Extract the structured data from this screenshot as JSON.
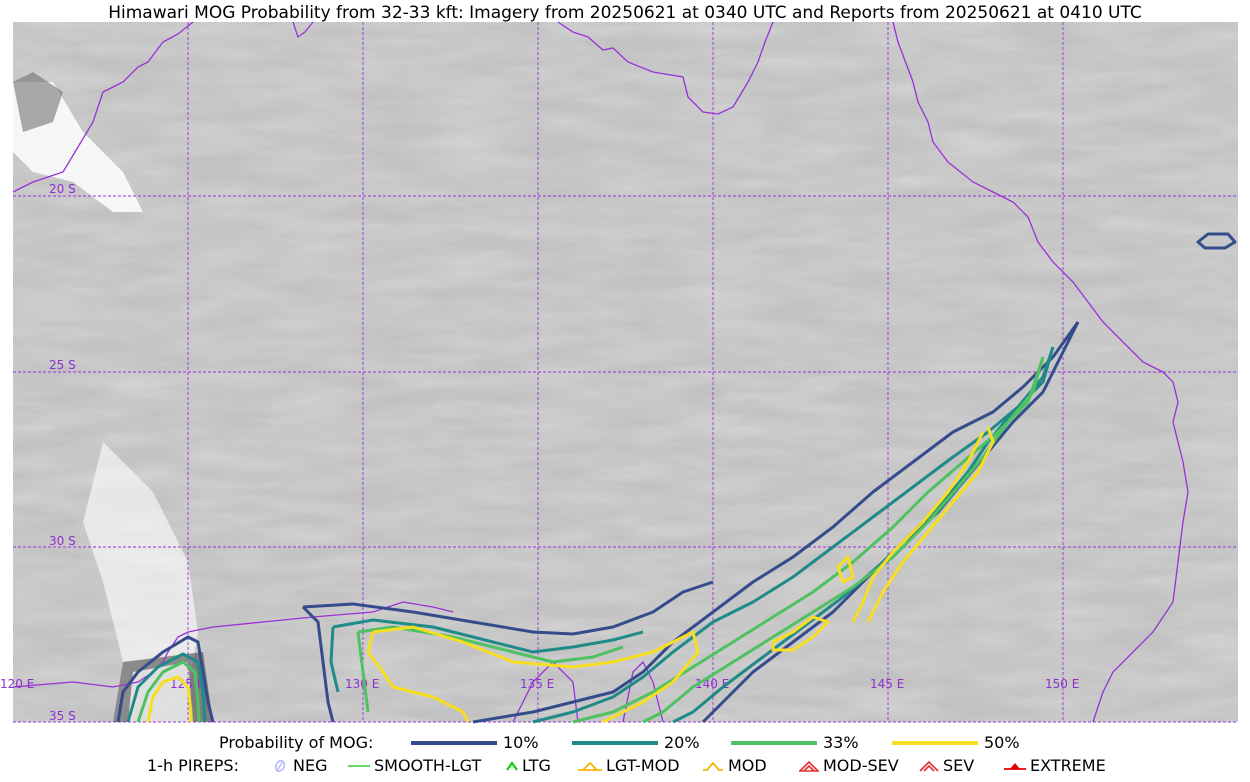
{
  "title": "Himawari MOG Probability from 32-33 kft: Imagery from 20250621 at 0340 UTC and Reports from 20250621 at 0410 UTC",
  "map": {
    "gridlines": {
      "latitudes": [
        "20 S",
        "25 S",
        "30 S",
        "35 S"
      ],
      "longitudes": [
        "120 E",
        "125 E",
        "130 E",
        "135 E",
        "140 E",
        "145 E",
        "150 E"
      ]
    },
    "colors": {
      "coastline": "#9b30d9",
      "grid": "#8e2fd0"
    }
  },
  "legend": {
    "probability_label": "Probability of MOG:",
    "probability_levels": [
      {
        "label": "10%",
        "color": "#354c8c"
      },
      {
        "label": "20%",
        "color": "#1f8a87"
      },
      {
        "label": "33%",
        "color": "#4ec160"
      },
      {
        "label": "50%",
        "color": "#f7de21"
      }
    ],
    "pireps_label": "1-h PIREPS:",
    "pireps": [
      {
        "label": "NEG",
        "icon": "neg-icon",
        "color": "#b9b9ff"
      },
      {
        "label": "SMOOTH-LGT",
        "icon": "smooth-lgt-icon",
        "color": "#33cc33"
      },
      {
        "label": "LTG",
        "icon": "ltg-icon",
        "color": "#00cc00"
      },
      {
        "label": "LGT-MOD",
        "icon": "lgt-mod-icon",
        "color": "#f4b400"
      },
      {
        "label": "MOD",
        "icon": "mod-icon",
        "color": "#f4b400"
      },
      {
        "label": "MOD-SEV",
        "icon": "mod-sev-icon",
        "color": "#e03030"
      },
      {
        "label": "SEV",
        "icon": "sev-icon",
        "color": "#e03030"
      },
      {
        "label": "EXTREME",
        "icon": "extreme-icon",
        "color": "#e00000"
      }
    ]
  }
}
